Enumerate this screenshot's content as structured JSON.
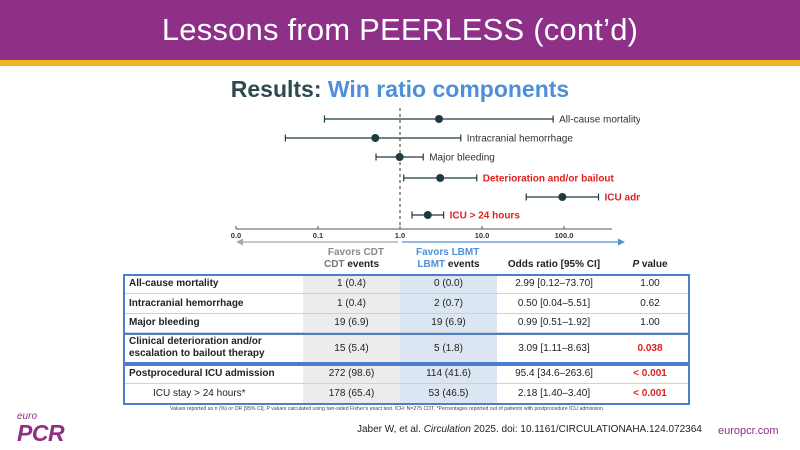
{
  "header": {
    "title": "Lessons from PEERLESS (cont’d)",
    "subtitle_prefix": "Results:",
    "subtitle_highlight": "Win ratio components"
  },
  "colors": {
    "brand_purple": "#8e2f88",
    "stripe_gold": "#f2b51f",
    "accent_blue": "#4f8fd8",
    "alert_red": "#e02020"
  },
  "chart_data": {
    "type": "forest",
    "scale": "log",
    "xlim": [
      1,
      1000
    ],
    "ticks": [
      "0.0",
      "0.1",
      "1.0",
      "10.0",
      "100.0"
    ],
    "reference_line": 1.0,
    "favor_left": "Favors CDT",
    "favor_right": "Favors LBMT",
    "rows": [
      {
        "label": "All-cause mortality",
        "or": 2.99,
        "low": 0.12,
        "high": 73.7,
        "highlight": false
      },
      {
        "label": "Intracranial hemorrhage",
        "or": 0.5,
        "low": 0.04,
        "high": 5.51,
        "highlight": false
      },
      {
        "label": "Major bleeding",
        "or": 0.99,
        "low": 0.51,
        "high": 1.92,
        "highlight": false
      },
      {
        "label": "Deterioration and/or bailout",
        "or": 3.09,
        "low": 1.11,
        "high": 8.63,
        "highlight": true
      },
      {
        "label": "ICU admission",
        "or": 95.4,
        "low": 34.6,
        "high": 263.6,
        "highlight": true
      },
      {
        "label": "ICU > 24 hours",
        "or": 2.18,
        "low": 1.4,
        "high": 3.4,
        "highlight": true
      }
    ]
  },
  "table": {
    "headers": {
      "cdt_bold": "CDT",
      "cdt_rest": " events",
      "lbmt_bold": "LBMT",
      "lbmt_rest": " events",
      "or": "Odds ratio [95% CI]",
      "p_italic": "P",
      "p_rest": " value"
    },
    "rows": [
      {
        "label": "All-cause mortality",
        "cdt": "1 (0.4)",
        "lbmt": "0 (0.0)",
        "or": "2.99 [0.12–73.70]",
        "p": "1.00"
      },
      {
        "label": "Intracranial hemorrhage",
        "cdt": "1 (0.4)",
        "lbmt": "2 (0.7)",
        "or": "0.50 [0.04–5.51]",
        "p": "0.62"
      },
      {
        "label": "Major bleeding",
        "cdt": "19 (6.9)",
        "lbmt": "19 (6.9)",
        "or": "0.99 [0.51–1.92]",
        "p": "1.00"
      },
      {
        "label_line1": "Clinical deterioration and/or",
        "label_line2": "escalation to bailout therapy",
        "cdt": "15 (5.4)",
        "lbmt": "5 (1.8)",
        "or": "3.09 [1.11–8.63]",
        "p": "0.038"
      },
      {
        "label": "Postprocedural ICU admission",
        "cdt": "272 (98.6)",
        "lbmt": "114 (41.6)",
        "or": "95.4 [34.6–263.6]",
        "p": "< 0.001"
      },
      {
        "label": "ICU stay > 24 hours*",
        "cdt": "178 (65.4)",
        "lbmt": "53 (46.5)",
        "or": "2.18 [1.40–3.40]",
        "p": "< 0.001"
      }
    ]
  },
  "footnote": "Values reported as n (%) or OR [95% CI]. P values calculated using two-sided Fisher’s exact test. ICH: N=275 CDT. *Percentages reported out of patients with postprocedure ICU admission.",
  "footer": {
    "logo_euro": "euro",
    "logo_pcr": "PCR",
    "citation_pre": "Jaber W, et al. ",
    "citation_journal": "Circulation",
    "citation_post": " 2025. doi: 10.1161/CIRCULATIONAHA.124.072364",
    "site": "europcr.com"
  }
}
